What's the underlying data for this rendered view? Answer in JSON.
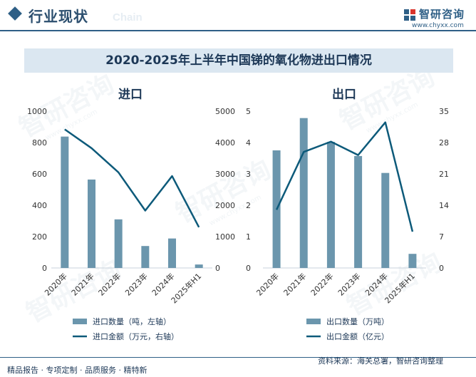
{
  "header": {
    "title": "行业现状",
    "bg_word": "Chain",
    "logo_name": "智研咨询",
    "logo_url": "www.chyxx.com"
  },
  "watermark": {
    "text": "智研咨询",
    "small": "www.chyxx.com"
  },
  "chart_data": {
    "title": "2020-2025年上半年中国锑的氧化物进出口情况",
    "colors": {
      "bar": "#6b96ad",
      "line": "#0d5a7a"
    },
    "charts": [
      {
        "panel_title": "进口",
        "type": "bar+line",
        "categories": [
          "2020年",
          "2021年",
          "2022年",
          "2023年",
          "2024年",
          "2025年H1"
        ],
        "bar_series": {
          "name": "进口数量（吨，左轴）",
          "values": [
            838,
            564,
            310,
            140,
            188,
            22
          ]
        },
        "line_series": {
          "name": "进口金额（万元，右轴）",
          "values": [
            4420,
            3820,
            3050,
            1830,
            2930,
            1300
          ]
        },
        "left_axis": {
          "min": 0,
          "max": 1000,
          "ticks": [
            0,
            200,
            400,
            600,
            800,
            1000
          ]
        },
        "right_axis": {
          "min": 0,
          "max": 5000,
          "ticks": [
            0,
            1000,
            2000,
            3000,
            4000,
            5000
          ]
        },
        "legend_position": "bottom",
        "grid": false
      },
      {
        "panel_title": "出口",
        "type": "bar+line",
        "categories": [
          "2020年",
          "2021年",
          "2022年",
          "2023年",
          "2024年",
          "2025年H1"
        ],
        "bar_series": {
          "name": "出口数量（万吨）",
          "values": [
            3.75,
            4.78,
            4.02,
            3.57,
            3.03,
            0.45
          ]
        },
        "line_series": {
          "name": "出口金额（亿元）",
          "values": [
            13.0,
            25.9,
            28.2,
            25.2,
            32.5,
            8.1
          ]
        },
        "left_axis": {
          "min": 0,
          "max": 5,
          "ticks": [
            0,
            1,
            2,
            3,
            4,
            5
          ]
        },
        "right_axis": {
          "min": 0,
          "max": 35,
          "ticks": [
            0,
            7,
            14,
            21,
            28,
            35
          ]
        },
        "legend_position": "bottom",
        "grid": false
      }
    ]
  },
  "footer": {
    "left": "精品报告 · 专项定制 · 品质服务 · 精特新",
    "right": "资料来源：海关总署，智研咨询整理"
  }
}
